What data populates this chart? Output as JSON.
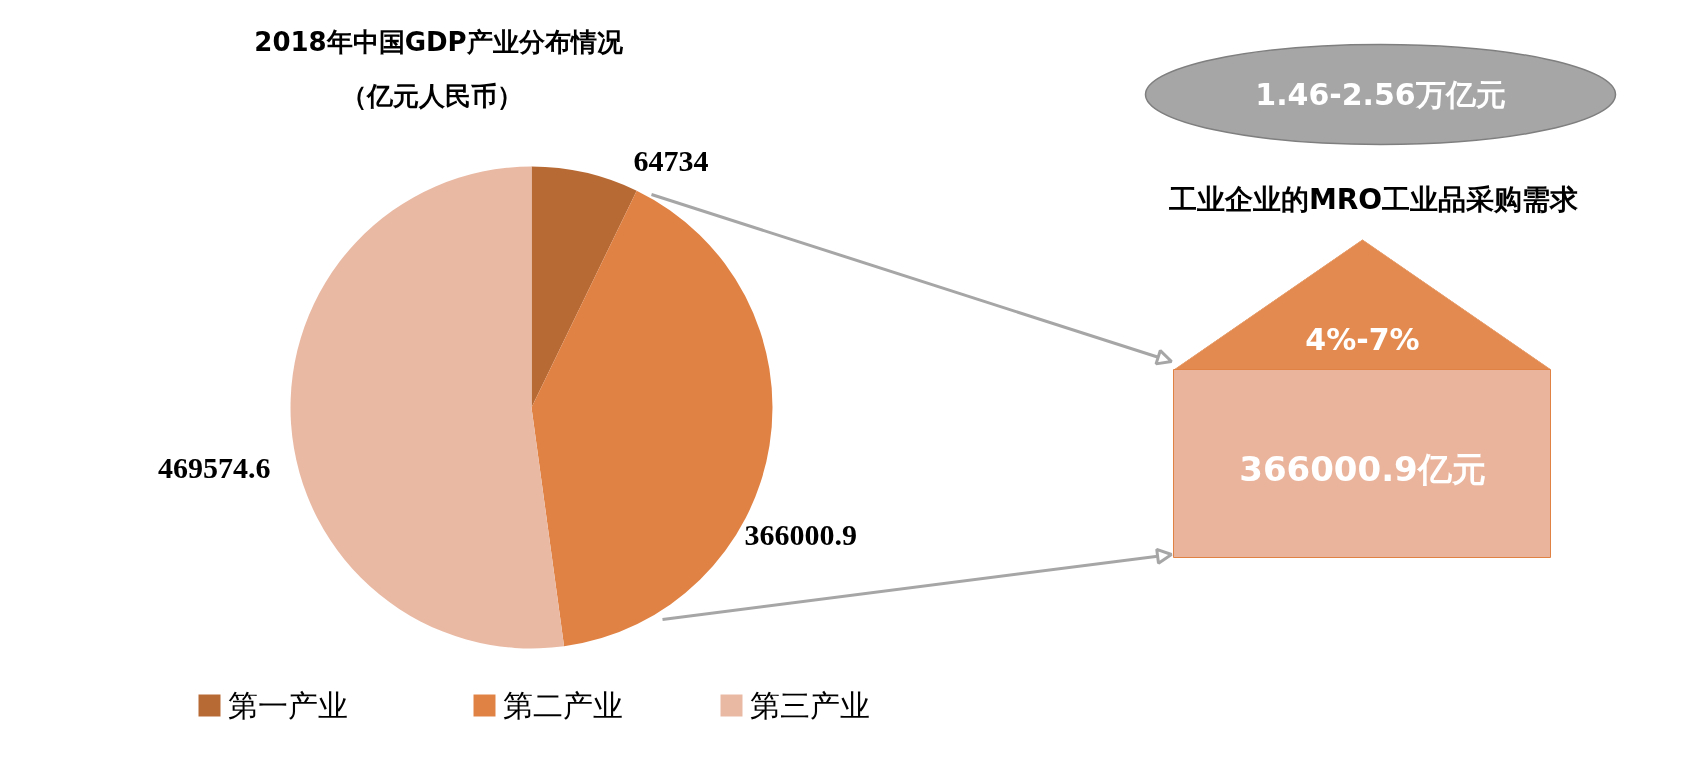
{
  "chart_data": {
    "type": "pie",
    "title": "2018年中国GDP产业分布情况",
    "subtitle": "（亿元人民币）",
    "categories": [
      "第一产业",
      "第二产业",
      "第三产业"
    ],
    "values": [
      64734,
      366000.9,
      469574.6
    ],
    "colors": [
      "#b86a35",
      "#e08244",
      "#e9b9a4"
    ],
    "data_labels": true,
    "legend": "bottom",
    "annotations": [
      "1.46-2.56万亿元",
      "工业企业的MRO工业品采购需求",
      "4%-7%",
      "366000.9亿元"
    ]
  }
}
